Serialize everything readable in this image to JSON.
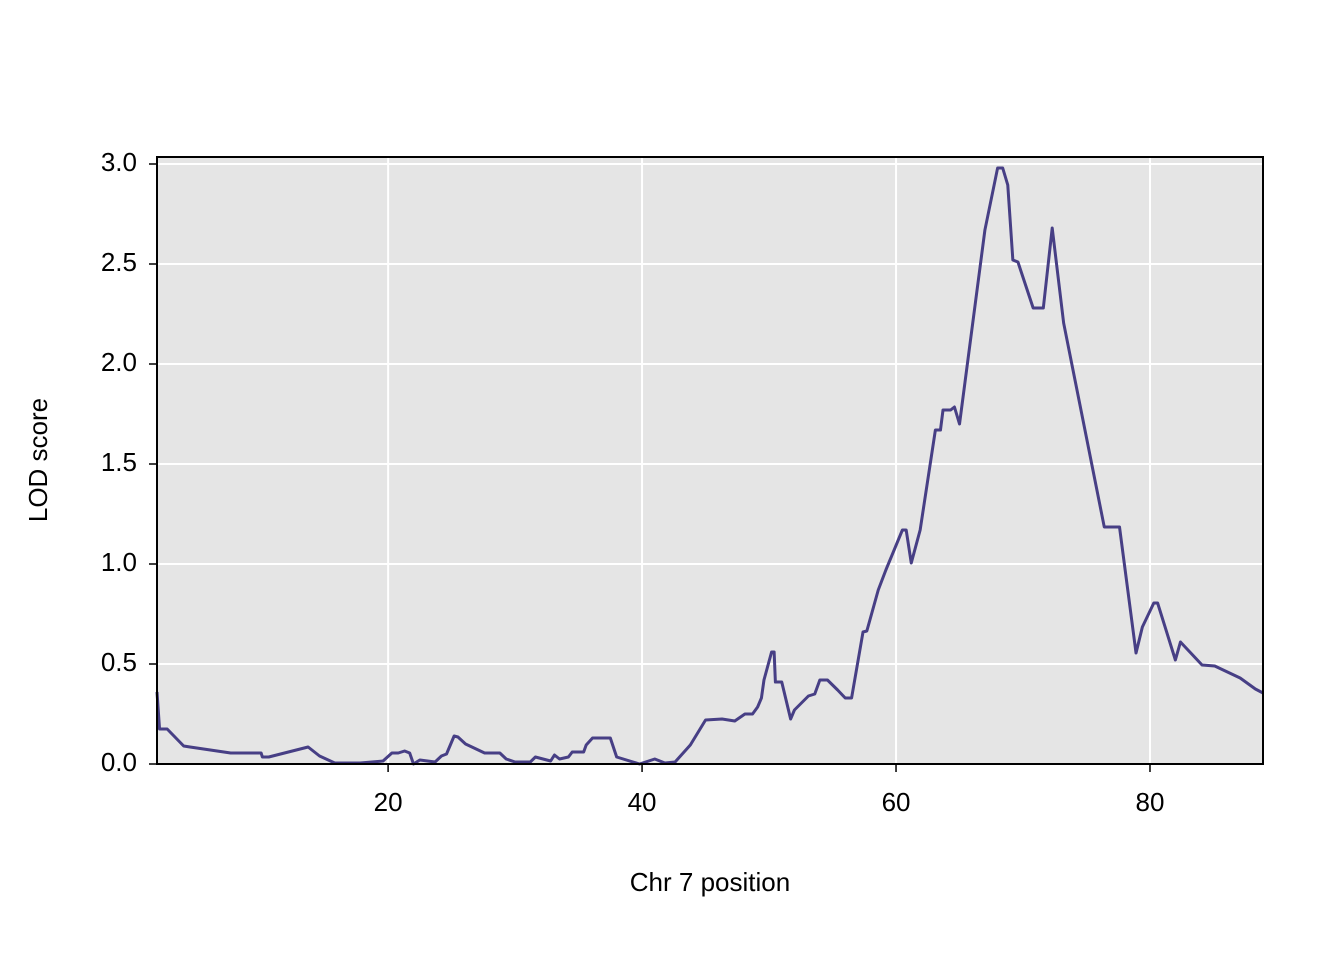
{
  "chart_data": {
    "type": "line",
    "x_label": "Chr 7 position",
    "y_label": "LOD score",
    "color": "#473f85",
    "plot_background": "#e5e5e5",
    "grid": true,
    "grid_color": "#ffffff",
    "xlim": [
      1.8,
      88.9
    ],
    "ylim": [
      0,
      3.035
    ],
    "xticks": [
      20,
      40,
      60,
      80
    ],
    "yticks": [
      {
        "value": 0,
        "label": "0.0"
      },
      {
        "value": 0.5,
        "label": "0.5"
      },
      {
        "value": 1,
        "label": "1.0"
      },
      {
        "value": 1.5,
        "label": "1.5"
      },
      {
        "value": 2,
        "label": "2.0"
      },
      {
        "value": 2.5,
        "label": "2.5"
      },
      {
        "value": 3,
        "label": "3.0"
      }
    ],
    "x": [
      1.8,
      2.0,
      2.6,
      3.9,
      4.4,
      7.6,
      10.0,
      10.1,
      10.6,
      13.7,
      14.6,
      15.8,
      17.8,
      19.6,
      20.3,
      20.8,
      21.3,
      21.7,
      22.0,
      22.5,
      23.7,
      24.2,
      24.6,
      25.2,
      25.5,
      26.1,
      27.6,
      28.8,
      29.3,
      30.0,
      31.2,
      31.6,
      32.8,
      33.1,
      33.5,
      34.2,
      34.5,
      35.4,
      35.6,
      36.1,
      37.5,
      38.0,
      39.8,
      41.0,
      41.8,
      42.6,
      43.8,
      45.0,
      46.3,
      47.3,
      48.1,
      48.7,
      49.1,
      49.4,
      49.6,
      50.2,
      50.4,
      50.5,
      51.0,
      51.7,
      52.0,
      53.1,
      53.6,
      54.0,
      54.6,
      55.4,
      56.0,
      56.5,
      57.4,
      57.7,
      58.6,
      59.2,
      60.5,
      60.8,
      61.2,
      61.9,
      63.1,
      63.5,
      63.7,
      64.3,
      64.6,
      65.0,
      67.0,
      68.0,
      68.4,
      68.8,
      69.2,
      69.6,
      70.8,
      71.6,
      72.3,
      73.2,
      76.4,
      77.6,
      78.9,
      79.4,
      80.3,
      80.6,
      82.0,
      82.4,
      84.1,
      85.1,
      87.1,
      88.3,
      88.9
    ],
    "values": [
      0.36,
      0.175,
      0.175,
      0.09,
      0.085,
      0.055,
      0.055,
      0.035,
      0.035,
      0.085,
      0.04,
      0.005,
      0.005,
      0.015,
      0.055,
      0.055,
      0.065,
      0.055,
      0,
      0.02,
      0.01,
      0.04,
      0.05,
      0.14,
      0.135,
      0.1,
      0.055,
      0.055,
      0.025,
      0.01,
      0.01,
      0.035,
      0.015,
      0.045,
      0.025,
      0.035,
      0.06,
      0.06,
      0.095,
      0.13,
      0.13,
      0.035,
      0,
      0.025,
      0.005,
      0.01,
      0.095,
      0.22,
      0.225,
      0.215,
      0.25,
      0.25,
      0.285,
      0.33,
      0.42,
      0.56,
      0.56,
      0.41,
      0.41,
      0.225,
      0.27,
      0.34,
      0.35,
      0.42,
      0.42,
      0.37,
      0.33,
      0.33,
      0.66,
      0.665,
      0.87,
      0.97,
      1.17,
      1.17,
      1.005,
      1.17,
      1.67,
      1.67,
      1.77,
      1.77,
      1.785,
      1.7,
      2.67,
      2.98,
      2.98,
      2.895,
      2.52,
      2.51,
      2.28,
      2.28,
      2.68,
      2.205,
      1.185,
      1.185,
      0.555,
      0.685,
      0.805,
      0.805,
      0.52,
      0.61,
      0.495,
      0.49,
      0.43,
      0.375,
      0.355
    ]
  }
}
